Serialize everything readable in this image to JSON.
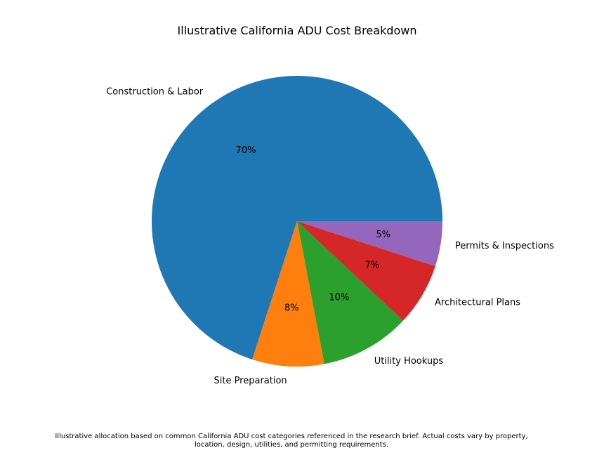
{
  "chart_data": {
    "type": "pie",
    "title": "Illustrative California ADU Cost Breakdown",
    "slices": [
      {
        "label": "Construction & Labor",
        "value": 70,
        "pct_label": "70%",
        "color": "#1f77b4"
      },
      {
        "label": "Site Preparation",
        "value": 8,
        "pct_label": "8%",
        "color": "#ff7f0e"
      },
      {
        "label": "Utility Hookups",
        "value": 10,
        "pct_label": "10%",
        "color": "#2ca02c"
      },
      {
        "label": "Architectural Plans",
        "value": 7,
        "pct_label": "7%",
        "color": "#d62728"
      },
      {
        "label": "Permits & Inspections",
        "value": 5,
        "pct_label": "5%",
        "color": "#9467bd"
      }
    ],
    "start_angle_deg": 0,
    "direction": "counterclockwise",
    "footnote": "Illustrative allocation based on common California ADU cost categories referenced in the research brief. Actual costs vary by property, location, design, utilities, and permitting requirements."
  }
}
